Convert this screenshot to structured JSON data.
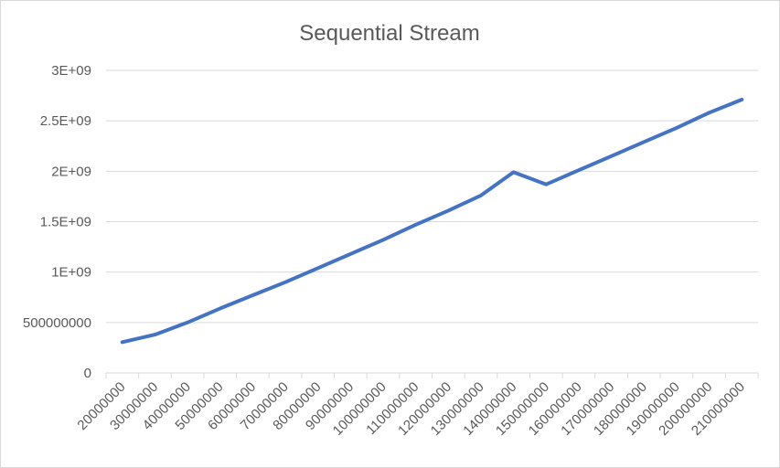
{
  "chart_data": {
    "type": "line",
    "title": "Sequential Stream",
    "xlabel": "",
    "ylabel": "",
    "categories": [
      "20000000",
      "30000000",
      "40000000",
      "50000000",
      "60000000",
      "70000000",
      "80000000",
      "90000000",
      "100000000",
      "110000000",
      "120000000",
      "130000000",
      "140000000",
      "150000000",
      "160000000",
      "170000000",
      "180000000",
      "190000000",
      "200000000",
      "210000000"
    ],
    "series": [
      {
        "values": [
          305000000,
          380000000,
          500000000,
          640000000,
          770000000,
          900000000,
          1040000000,
          1180000000,
          1320000000,
          1470000000,
          1610000000,
          1760000000,
          1990000000,
          1870000000,
          2010000000,
          2150000000,
          2290000000,
          2430000000,
          2580000000,
          2710000000
        ],
        "color": "#4472c4"
      }
    ],
    "ylim": [
      0,
      3000000000
    ],
    "yticks": [
      0,
      500000000,
      1000000000,
      1500000000,
      2000000000,
      2500000000,
      3000000000
    ],
    "ytick_labels": [
      "0",
      "500000000",
      "1E+09",
      "1.5E+09",
      "2E+09",
      "2.5E+09",
      "3E+09"
    ],
    "grid": "horizontal",
    "legend": "none",
    "gridline_color": "#d9d9d9",
    "text_color": "#595959"
  }
}
